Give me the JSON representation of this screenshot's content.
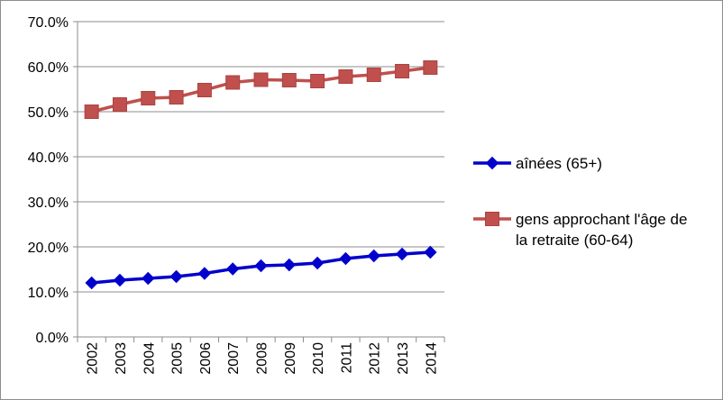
{
  "chart_data": {
    "type": "line",
    "title": "",
    "xlabel": "",
    "ylabel": "",
    "categories": [
      "2002",
      "2003",
      "2004",
      "2005",
      "2006",
      "2007",
      "2008",
      "2009",
      "2010",
      "2011",
      "2012",
      "2013",
      "2014"
    ],
    "ylim": [
      0,
      70
    ],
    "y_ticks": [
      "0.0%",
      "10.0%",
      "20.0%",
      "30.0%",
      "40.0%",
      "50.0%",
      "60.0%",
      "70.0%"
    ],
    "y_tick_values": [
      0,
      10,
      20,
      30,
      40,
      50,
      60,
      70
    ],
    "grid": true,
    "legend_position": "right",
    "series": [
      {
        "name": "aînées (65+)",
        "name_lines": [
          "aînées (65+)"
        ],
        "color": "#0000CC",
        "marker": "diamond",
        "values": [
          12.0,
          12.6,
          13.0,
          13.4,
          14.1,
          15.1,
          15.8,
          16.0,
          16.4,
          17.4,
          18.0,
          18.4,
          18.8
        ]
      },
      {
        "name": "gens approchant l'âge de la retraite (60-64)",
        "name_lines": [
          "gens approchant l'âge de",
          "la retraite (60-64)"
        ],
        "color": "#C0504D",
        "marker": "square",
        "values": [
          50.0,
          51.6,
          53.0,
          53.2,
          54.8,
          56.5,
          57.1,
          57.0,
          56.8,
          57.8,
          58.2,
          59.0,
          59.8
        ]
      }
    ]
  }
}
